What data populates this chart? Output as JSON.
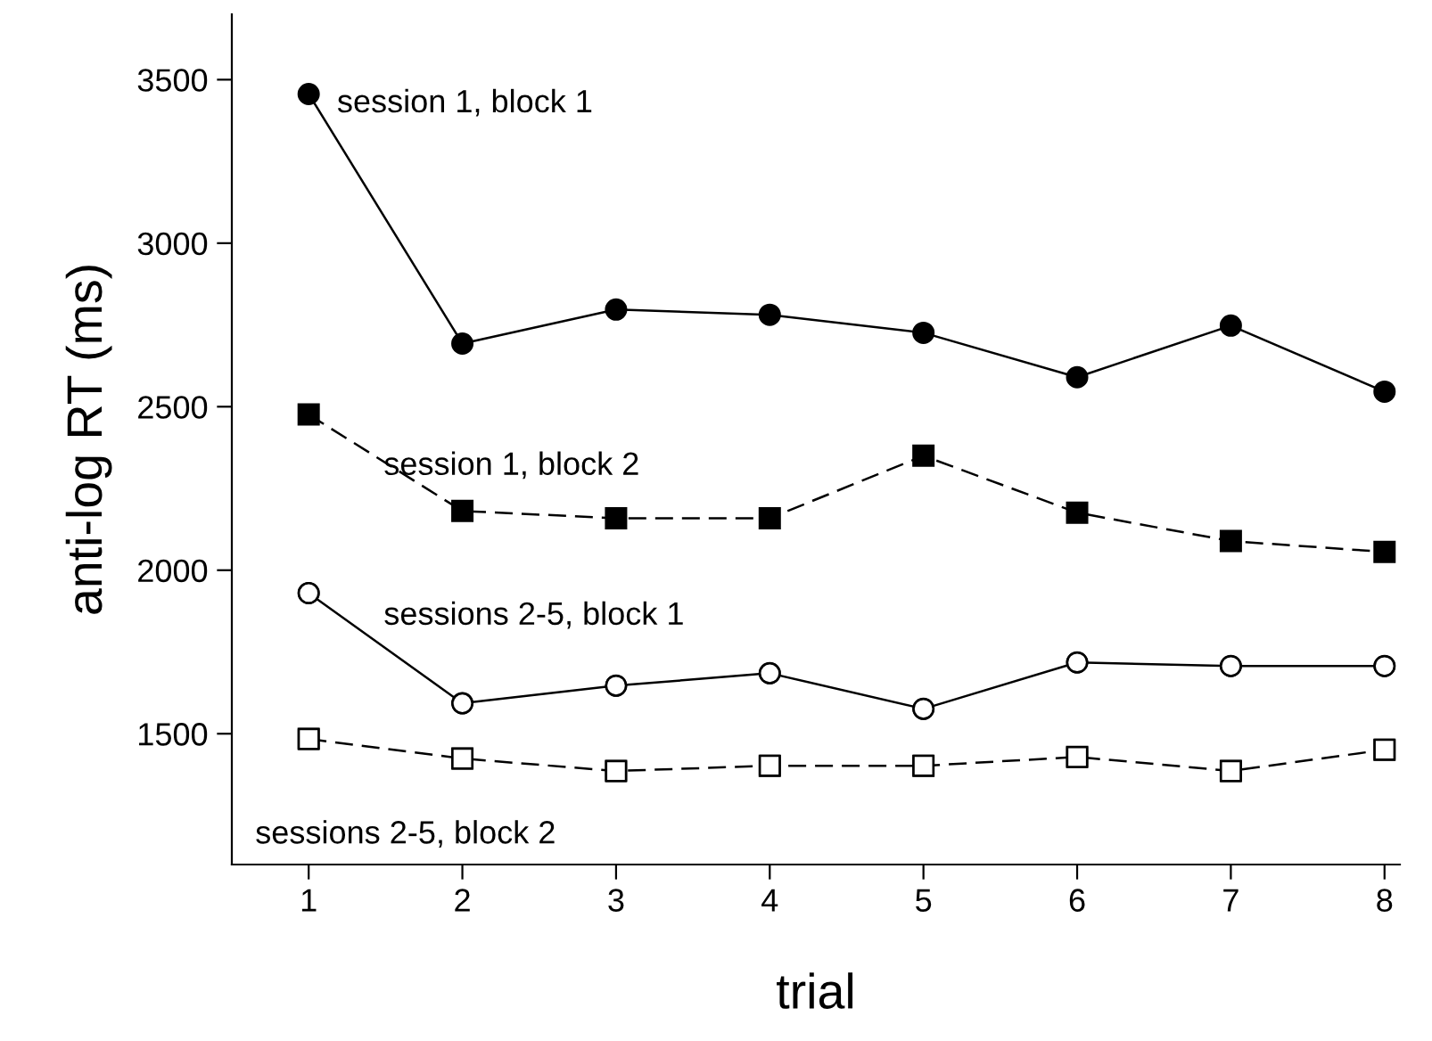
{
  "chart_data": {
    "type": "line",
    "xlabel": "trial",
    "ylabel": "anti-log RT (ms)",
    "x": [
      1,
      2,
      3,
      4,
      5,
      6,
      7,
      8
    ],
    "xlim": [
      0.5,
      8.1
    ],
    "xticks": [
      1,
      2,
      3,
      4,
      5,
      6,
      7,
      8
    ],
    "ylim": [
      1100,
      3700
    ],
    "yticks": [
      1500,
      2000,
      2500,
      3000,
      3500
    ],
    "grid": false,
    "legend": false,
    "series": [
      {
        "name": "session 1, block 1",
        "color": "#000000",
        "marker": "circle",
        "line_style": "solid",
        "values": [
          3456,
          2693,
          2797,
          2781,
          2726,
          2590,
          2748,
          2546
        ]
      },
      {
        "name": "session 1, block 2",
        "color": "#000000",
        "marker": "square",
        "line_style": "dashed",
        "values": [
          2476,
          2181,
          2159,
          2159,
          2350,
          2176,
          2089,
          2056
        ]
      },
      {
        "name": "sessions 2-5, block 1",
        "color": "#000000",
        "marker": "circle",
        "line_style": "solid",
        "colors": [
          "#ffffff",
          "#ffffff",
          "#ffffff",
          "#ffffff",
          "#ffffff",
          "#ffffff",
          "#ffffff",
          "#ffffff"
        ],
        "values": [
          1930,
          1593,
          1647,
          1685,
          1576,
          1718,
          1707,
          1707
        ]
      },
      {
        "name": "sessions 2-5, block 2",
        "color": "#000000",
        "marker": "square",
        "line_style": "dashed",
        "colors": [
          "#ffffff",
          "#ffffff",
          "#ffffff",
          "#ffffff",
          "#ffffff",
          "#ffffff",
          "#ffffff",
          "#ffffff"
        ],
        "values": [
          1484,
          1424,
          1386,
          1402,
          1402,
          1429,
          1386,
          1451
        ]
      }
    ]
  }
}
